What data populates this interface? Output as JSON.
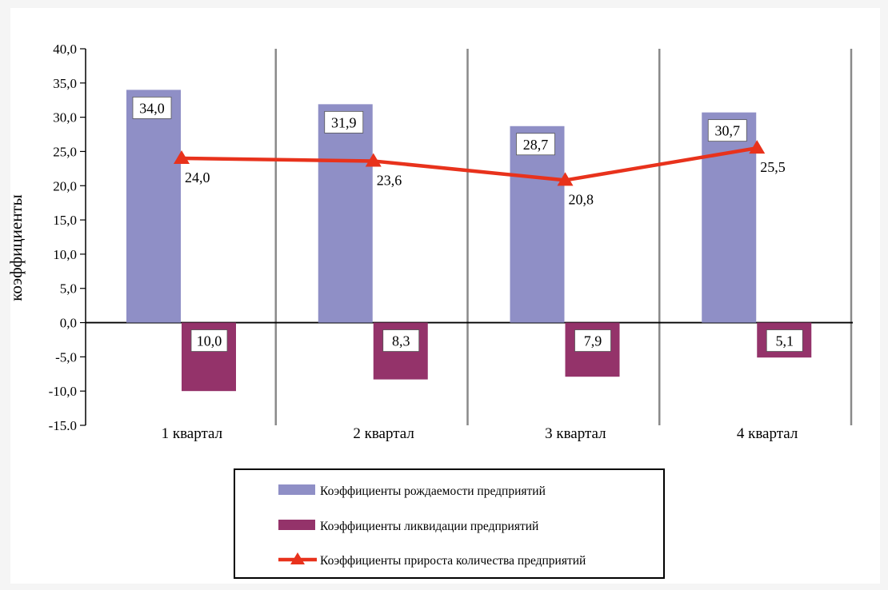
{
  "chart_data": {
    "type": "bar",
    "categories": [
      "1 квартал",
      "2 квартал",
      "3 квартал",
      "4 квартал"
    ],
    "ylabel": "коэффициенты",
    "ylim": [
      -15,
      40
    ],
    "y_ticks": [
      40,
      35,
      30,
      25,
      20,
      15,
      10,
      5,
      0,
      -5,
      -10,
      -15
    ],
    "y_tick_labels": [
      "40,0",
      "35,0",
      "30,0",
      "25,0",
      "20,0",
      "15,0",
      "10,0",
      "5,0",
      "0,0",
      "-5,0",
      "-10,0",
      "-15.0"
    ],
    "legend_position": "bottom",
    "series": [
      {
        "name": "Коэффициенты рождаемости предприятий",
        "kind": "bar",
        "color": "#8f8fc6",
        "values": [
          34.0,
          31.9,
          28.7,
          30.7
        ],
        "labels": [
          "34,0",
          "31,9",
          "28,7",
          "30,7"
        ]
      },
      {
        "name": "Коэффициенты ликвидации предприятий",
        "kind": "bar",
        "color": "#94336a",
        "values": [
          -10.0,
          -8.3,
          -7.9,
          -5.1
        ],
        "labels": [
          "10,0",
          "8,3",
          "7,9",
          "5,1"
        ]
      },
      {
        "name": "Коэффициенты прироста количества предприятий",
        "kind": "line",
        "color": "#e8321c",
        "marker": "triangle",
        "values": [
          24.0,
          23.6,
          20.8,
          25.5
        ],
        "labels": [
          "24,0",
          "23,6",
          "20,8",
          "25,5"
        ]
      }
    ]
  }
}
